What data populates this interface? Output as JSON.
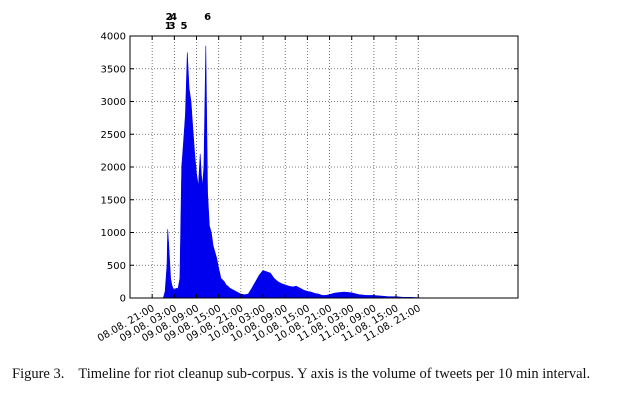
{
  "chart_data": {
    "type": "area",
    "title": "",
    "xlabel": "",
    "ylabel": "",
    "ylim": [
      0,
      4000
    ],
    "yticks": [
      0,
      500,
      1000,
      1500,
      2000,
      2500,
      3000,
      3500,
      4000
    ],
    "xlim_hours": [
      -6,
      99
    ],
    "xticks": [
      {
        "label": "08.08. 21:00",
        "hour": 0
      },
      {
        "label": "09.08. 03:00",
        "hour": 6
      },
      {
        "label": "09.08. 09:00",
        "hour": 12
      },
      {
        "label": "09.08. 15:00",
        "hour": 18
      },
      {
        "label": "09.08. 21:00",
        "hour": 24
      },
      {
        "label": "10.08. 03:00",
        "hour": 30
      },
      {
        "label": "10.08. 09:00",
        "hour": 36
      },
      {
        "label": "10.08. 15:00",
        "hour": 42
      },
      {
        "label": "10.08. 21:00",
        "hour": 48
      },
      {
        "label": "11.08. 03:00",
        "hour": 54
      },
      {
        "label": "11.08. 09:00",
        "hour": 60
      },
      {
        "label": "11.08. 15:00",
        "hour": 66
      },
      {
        "label": "11.08. 21:00",
        "hour": 72
      }
    ],
    "grid": true,
    "color": "#0000ee",
    "series": [
      {
        "hours": [
          3,
          3.5,
          4,
          4.2,
          4.5,
          4.8,
          5,
          5.3,
          5.6,
          6,
          6.5,
          7,
          7.5,
          8,
          8.5,
          9,
          9.5,
          10,
          10.5,
          11,
          11.5,
          12,
          12.5,
          13,
          13.3,
          13.6,
          14,
          14.5,
          15,
          15.5,
          16,
          16.5,
          17,
          17.5,
          18,
          18.3,
          18.6,
          19,
          19.5,
          20,
          20.5,
          21,
          22,
          23,
          24,
          25,
          26,
          27,
          28,
          29,
          30,
          31,
          32,
          33,
          34,
          35,
          36,
          37,
          38,
          39,
          40,
          41,
          42,
          43,
          44,
          45,
          46,
          47,
          48,
          49,
          50,
          52,
          54,
          56,
          58,
          60,
          62,
          64,
          66,
          68,
          70,
          72,
          74,
          75
        ],
        "values": [
          0,
          100,
          500,
          1050,
          800,
          500,
          300,
          200,
          150,
          120,
          150,
          140,
          300,
          2000,
          2400,
          2800,
          3750,
          3200,
          3000,
          2600,
          2200,
          1900,
          1700,
          2200,
          1900,
          1700,
          2000,
          3850,
          1600,
          1100,
          1000,
          800,
          700,
          600,
          450,
          380,
          300,
          280,
          250,
          200,
          180,
          150,
          120,
          90,
          60,
          50,
          60,
          150,
          250,
          350,
          420,
          400,
          380,
          300,
          250,
          220,
          200,
          180,
          170,
          180,
          150,
          120,
          100,
          90,
          70,
          60,
          40,
          40,
          50,
          70,
          80,
          90,
          80,
          50,
          40,
          40,
          30,
          20,
          20,
          10,
          10,
          5,
          0,
          0
        ]
      }
    ],
    "annotations": [
      {
        "text": "1",
        "hour": 4.3,
        "row": "lower"
      },
      {
        "text": "3",
        "hour": 5.4,
        "row": "lower"
      },
      {
        "text": "2",
        "hour": 4.6,
        "row": "upper"
      },
      {
        "text": "4",
        "hour": 5.8,
        "row": "upper"
      },
      {
        "text": "5",
        "hour": 8.6,
        "row": "lower"
      },
      {
        "text": "6",
        "hour": 15.0,
        "row": "upper"
      }
    ]
  },
  "caption": {
    "label": "Figure 3.",
    "text": "Timeline for riot cleanup sub-corpus. Y axis is the volume of tweets per 10 min interval."
  }
}
